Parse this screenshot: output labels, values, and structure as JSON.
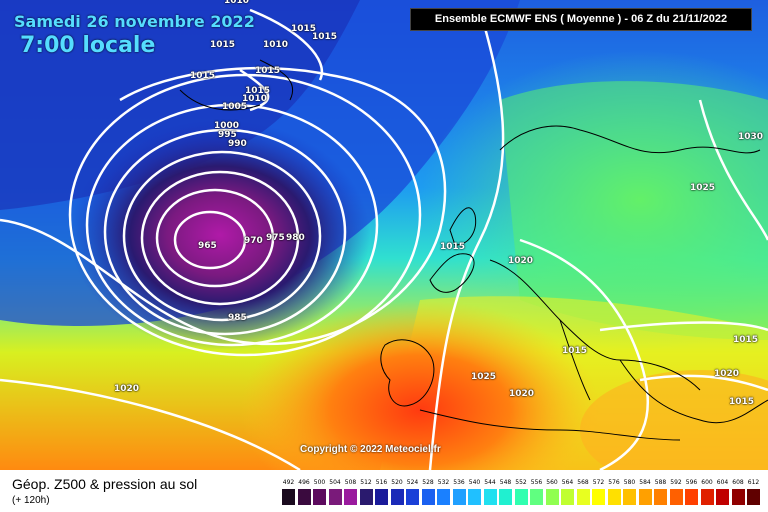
{
  "header": {
    "date": "Samedi 26 novembre 2022",
    "local_time": "7:00 locale",
    "run_info": "Ensemble ECMWF ENS  ( Moyenne )  - 06 Z du 21/11/2022"
  },
  "copyright": "Copyright © 2022 Meteociel.fr",
  "footer": {
    "title": "Géop. Z500 & pression au sol",
    "subtitle": "(+ 120h)"
  },
  "pressure_labels": [
    "1010",
    "1015",
    "1015",
    "1010",
    "1015",
    "1015",
    "1015",
    "1005",
    "1015",
    "1010",
    "1000",
    "995",
    "990",
    "965",
    "970",
    "975",
    "980",
    "985",
    "1015",
    "1020",
    "1025",
    "1030",
    "1020",
    "1015",
    "1025",
    "1020",
    "1015",
    "1020",
    "1015",
    "1020"
  ],
  "scale_values": [
    "492",
    "496",
    "500",
    "504",
    "508",
    "512",
    "516",
    "520",
    "524",
    "528",
    "532",
    "536",
    "540",
    "544",
    "548",
    "552",
    "556",
    "560",
    "564",
    "568",
    "572",
    "576",
    "580",
    "584",
    "588",
    "592",
    "596",
    "600",
    "604",
    "608",
    "612"
  ],
  "scale_colors": [
    "#1a0a1e",
    "#3a0a3e",
    "#5c0a5e",
    "#7a1a7a",
    "#9a1a9e",
    "#2a1a6e",
    "#1a1a9a",
    "#1a2ab8",
    "#1a40d8",
    "#1a60f0",
    "#1a80ff",
    "#20a0ff",
    "#20c0ff",
    "#20e0f0",
    "#20f0d0",
    "#30ffb0",
    "#60ff80",
    "#90ff50",
    "#c0ff30",
    "#e8ff20",
    "#ffff00",
    "#ffe000",
    "#ffc000",
    "#ffa000",
    "#ff8000",
    "#ff6000",
    "#ff4000",
    "#e02000",
    "#c00000",
    "#900000",
    "#600000"
  ],
  "map_legend": {
    "low_center": "965"
  }
}
